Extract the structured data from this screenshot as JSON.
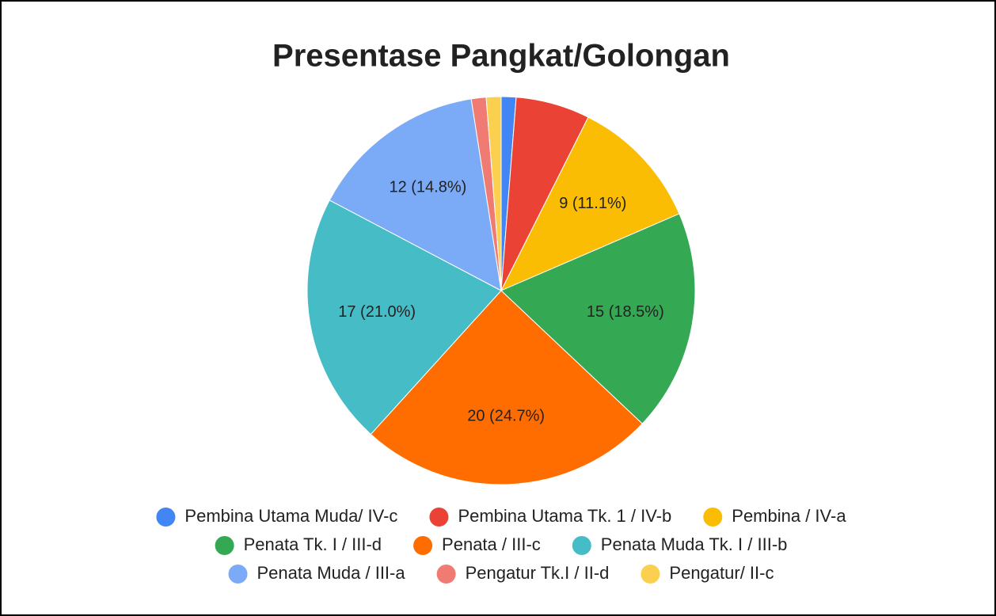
{
  "chart_data": {
    "type": "pie",
    "title": "Presentase Pangkat/Golongan",
    "categories": [
      "Pembina Utama Muda/ IV-c",
      "Pembina Utama Tk. 1 / IV-b",
      "Pembina / IV-a",
      "Penata Tk. I / III-d",
      "Penata / III-c",
      "Penata Muda Tk. I / III-b",
      "Penata Muda / III-a",
      "Pengatur Tk.I / II-d",
      "Pengatur/ II-c"
    ],
    "values": [
      1,
      5,
      9,
      15,
      20,
      17,
      12,
      1,
      1
    ],
    "value_labels": [
      null,
      null,
      "9 (11.1%)",
      "15 (18.5%)",
      "20 (24.7%)",
      "17 (21.0%)",
      "12 (14.8%)",
      null,
      null
    ],
    "colors": [
      "#4285f4",
      "#ea4335",
      "#fbbc04",
      "#34a853",
      "#ff6d01",
      "#46bdc6",
      "#7baaf7",
      "#f07b72",
      "#fcd04f"
    ],
    "legend": "bottom"
  }
}
